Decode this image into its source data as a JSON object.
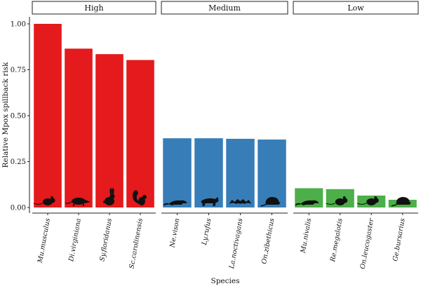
{
  "chart_data": {
    "type": "bar",
    "xlabel": "Species",
    "ylabel": "Relative Mpox spillback risk",
    "ylim": [
      0,
      1.05
    ],
    "yticks": [
      "0.00",
      "0.25",
      "0.50",
      "0.75",
      "1.00"
    ],
    "grid": false,
    "legend": "none",
    "facets": [
      {
        "label": "High",
        "color": "#e41a1c",
        "categories": [
          "Mu.musculus",
          "Di.virginiana",
          "Sy.floridanus",
          "Sc.carolinensis"
        ],
        "values": [
          1.0,
          0.865,
          0.835,
          0.803
        ],
        "icons": [
          "mouse-icon",
          "opossum-icon",
          "rabbit-icon",
          "squirrel-icon"
        ]
      },
      {
        "label": "Medium",
        "color": "#377eb8",
        "categories": [
          "Ne.vison",
          "Ly.rufus",
          "La.noctivagans",
          "On.zibethicus"
        ],
        "values": [
          0.377,
          0.377,
          0.374,
          0.37
        ],
        "icons": [
          "mink-icon",
          "bobcat-icon",
          "bat-icon",
          "muskrat-icon"
        ]
      },
      {
        "label": "Low",
        "color": "#4daf4a",
        "categories": [
          "Mu.nivalis",
          "Re.megalotis",
          "On.leucogaster",
          "Ge.bursarius"
        ],
        "values": [
          0.105,
          0.1,
          0.065,
          0.042
        ],
        "icons": [
          "weasel-icon",
          "harvest-mouse-icon",
          "grasshopper-mouse-icon",
          "gopher-icon"
        ]
      }
    ]
  }
}
